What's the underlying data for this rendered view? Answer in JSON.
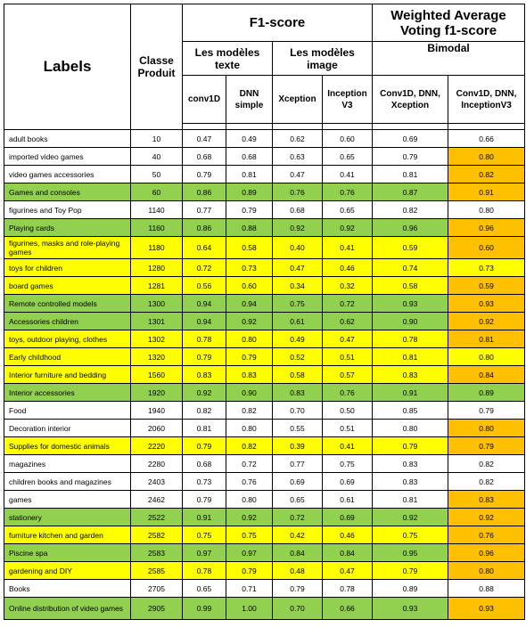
{
  "headers": {
    "labels": "Labels",
    "classe": "Classe Produit",
    "f1": "F1-score",
    "weighted": "Weighted Average Voting f1-score",
    "texte": "Les modèles texte",
    "image": "Les modèles image",
    "bimodal": "Bimodal",
    "conv1d": "conv1D",
    "dnn": "DNN simple",
    "xception": "Xception",
    "inception": "Inception V3",
    "bi_xception": "Conv1D, DNN, Xception",
    "bi_inception": "Conv1D, DNN, InceptionV3"
  },
  "colors": {
    "green": "#92d050",
    "yellow": "#ffff00",
    "orange": "#ffc000"
  },
  "rows": [
    {
      "label": "adult books",
      "classe": "10",
      "conv1d": "0.47",
      "dnn": "0.49",
      "xception": "0.62",
      "inception": "0.60",
      "bi_x": "0.69",
      "bi_i": "0.66",
      "color": "white",
      "orange": false
    },
    {
      "label": "imported video games",
      "classe": "40",
      "conv1d": "0.68",
      "dnn": "0.68",
      "xception": "0.63",
      "inception": "0.65",
      "bi_x": "0.79",
      "bi_i": "0.80",
      "color": "white",
      "orange": true
    },
    {
      "label": "video games accessories",
      "classe": "50",
      "conv1d": "0.79",
      "dnn": "0.81",
      "xception": "0.47",
      "inception": "0.41",
      "bi_x": "0.81",
      "bi_i": "0.82",
      "color": "white",
      "orange": true
    },
    {
      "label": "Games and consoles",
      "classe": "60",
      "conv1d": "0.86",
      "dnn": "0.89",
      "xception": "0.76",
      "inception": "0.76",
      "bi_x": "0.87",
      "bi_i": "0.91",
      "color": "green",
      "orange": true
    },
    {
      "label": "figurines and Toy Pop",
      "classe": "1140",
      "conv1d": "0.77",
      "dnn": "0.79",
      "xception": "0.68",
      "inception": "0.65",
      "bi_x": "0.82",
      "bi_i": "0.80",
      "color": "white",
      "orange": false
    },
    {
      "label": "Playing cards",
      "classe": "1160",
      "conv1d": "0.86",
      "dnn": "0.88",
      "xception": "0.92",
      "inception": "0.92",
      "bi_x": "0.96",
      "bi_i": "0.96",
      "color": "green",
      "orange": true
    },
    {
      "label": "figurines, masks and role-playing games",
      "classe": "1180",
      "conv1d": "0.64",
      "dnn": "0.58",
      "xception": "0.40",
      "inception": "0.41",
      "bi_x": "0.59",
      "bi_i": "0.60",
      "color": "yellow",
      "orange": true,
      "tall": true
    },
    {
      "label": "toys for children",
      "classe": "1280",
      "conv1d": "0.72",
      "dnn": "0.73",
      "xception": "0.47",
      "inception": "0.46",
      "bi_x": "0.74",
      "bi_i": "0.73",
      "color": "yellow",
      "orange": false
    },
    {
      "label": "board games",
      "classe": "1281",
      "conv1d": "0.56",
      "dnn": "0.60",
      "xception": "0.34",
      "inception": "0.32",
      "bi_x": "0.58",
      "bi_i": "0.59",
      "color": "yellow",
      "orange": true
    },
    {
      "label": "Remote controlled models",
      "classe": "1300",
      "conv1d": "0.94",
      "dnn": "0.94",
      "xception": "0.75",
      "inception": "0.72",
      "bi_x": "0.93",
      "bi_i": "0.93",
      "color": "green",
      "orange": true
    },
    {
      "label": "Accessories children",
      "classe": "1301",
      "conv1d": "0.94",
      "dnn": "0.92",
      "xception": "0.61",
      "inception": "0.62",
      "bi_x": "0.90",
      "bi_i": "0.92",
      "color": "green",
      "orange": true
    },
    {
      "label": "toys, outdoor playing, clothes",
      "classe": "1302",
      "conv1d": "0.78",
      "dnn": "0.80",
      "xception": "0.49",
      "inception": "0.47",
      "bi_x": "0.78",
      "bi_i": "0.81",
      "color": "yellow",
      "orange": true
    },
    {
      "label": "Early childhood",
      "classe": "1320",
      "conv1d": "0.79",
      "dnn": "0.79",
      "xception": "0.52",
      "inception": "0.51",
      "bi_x": "0.81",
      "bi_i": "0.80",
      "color": "yellow",
      "orange": false
    },
    {
      "label": "Interior furniture and bedding",
      "classe": "1560",
      "conv1d": "0.83",
      "dnn": "0.83",
      "xception": "0.58",
      "inception": "0.57",
      "bi_x": "0.83",
      "bi_i": "0.84",
      "color": "yellow",
      "orange": true
    },
    {
      "label": "Interior accessories",
      "classe": "1920",
      "conv1d": "0.92",
      "dnn": "0.90",
      "xception": "0.83",
      "inception": "0.76",
      "bi_x": "0.91",
      "bi_i": "0.89",
      "color": "green",
      "orange": false
    },
    {
      "label": "Food",
      "classe": "1940",
      "conv1d": "0.82",
      "dnn": "0.82",
      "xception": "0.70",
      "inception": "0.50",
      "bi_x": "0.85",
      "bi_i": "0.79",
      "color": "white",
      "orange": false
    },
    {
      "label": "Decoration interior",
      "classe": "2060",
      "conv1d": "0.81",
      "dnn": "0.80",
      "xception": "0.55",
      "inception": "0.51",
      "bi_x": "0.80",
      "bi_i": "0.80",
      "color": "white",
      "orange": true
    },
    {
      "label": "Supplies for domestic animals",
      "classe": "2220",
      "conv1d": "0.79",
      "dnn": "0.82",
      "xception": "0.39",
      "inception": "0.41",
      "bi_x": "0.79",
      "bi_i": "0.79",
      "color": "yellow",
      "orange": true
    },
    {
      "label": "magazines",
      "classe": "2280",
      "conv1d": "0.68",
      "dnn": "0.72",
      "xception": "0.77",
      "inception": "0.75",
      "bi_x": "0.83",
      "bi_i": "0.82",
      "color": "white",
      "orange": false
    },
    {
      "label": "children books and magazines",
      "classe": "2403",
      "conv1d": "0.73",
      "dnn": "0.76",
      "xception": "0.69",
      "inception": "0.69",
      "bi_x": "0.83",
      "bi_i": "0.82",
      "color": "white",
      "orange": false
    },
    {
      "label": "games",
      "classe": "2462",
      "conv1d": "0.79",
      "dnn": "0.80",
      "xception": "0.65",
      "inception": "0.61",
      "bi_x": "0.81",
      "bi_i": "0.83",
      "color": "white",
      "orange": true
    },
    {
      "label": "stationery",
      "classe": "2522",
      "conv1d": "0.91",
      "dnn": "0.92",
      "xception": "0.72",
      "inception": "0.69",
      "bi_x": "0.92",
      "bi_i": "0.92",
      "color": "green",
      "orange": true
    },
    {
      "label": "furniture kitchen and garden",
      "classe": "2582",
      "conv1d": "0.75",
      "dnn": "0.75",
      "xception": "0.42",
      "inception": "0.46",
      "bi_x": "0.75",
      "bi_i": "0.76",
      "color": "yellow",
      "orange": true
    },
    {
      "label": "Piscine spa",
      "classe": "2583",
      "conv1d": "0.97",
      "dnn": "0.97",
      "xception": "0.84",
      "inception": "0.84",
      "bi_x": "0.95",
      "bi_i": "0.96",
      "color": "green",
      "orange": true
    },
    {
      "label": "gardening and DIY",
      "classe": "2585",
      "conv1d": "0.78",
      "dnn": "0.79",
      "xception": "0.48",
      "inception": "0.47",
      "bi_x": "0.79",
      "bi_i": "0.80",
      "color": "yellow",
      "orange": true
    },
    {
      "label": "Books",
      "classe": "2705",
      "conv1d": "0.65",
      "dnn": "0.71",
      "xception": "0.79",
      "inception": "0.78",
      "bi_x": "0.89",
      "bi_i": "0.88",
      "color": "white",
      "orange": false
    },
    {
      "label": "Online distribution of video games",
      "classe": "2905",
      "conv1d": "0.99",
      "dnn": "1.00",
      "xception": "0.70",
      "inception": "0.66",
      "bi_x": "0.93",
      "bi_i": "0.93",
      "color": "green",
      "orange": true,
      "tall": true
    }
  ]
}
